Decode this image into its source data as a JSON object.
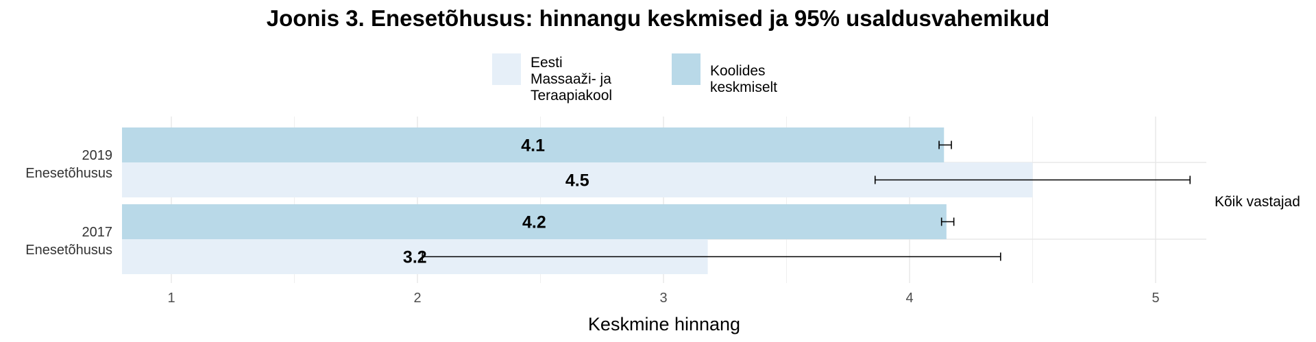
{
  "chart_data": {
    "type": "bar",
    "orientation": "horizontal",
    "title": "Joonis 3. Enesetõhusus: hinnangu keskmised ja 95% usaldusvahemikud",
    "xlabel": "Keskmine hinnang",
    "ylabel": "",
    "xlim": [
      0.8,
      5.2
    ],
    "xticks": [
      "1",
      "2",
      "3",
      "4",
      "5"
    ],
    "categories": [
      "2019\nEnesetõhusus",
      "2017\nEnesetõhusus"
    ],
    "category_lines": [
      [
        "2019",
        "Enesetõhusus"
      ],
      [
        "2017",
        "Enesetõhusus"
      ]
    ],
    "facet_label": "Kõik vastajad",
    "legend_position": "top",
    "grid": true,
    "series": [
      {
        "name": "Koolides keskmiselt",
        "color": "#b9d9e8",
        "values": [
          4.14,
          4.15
        ],
        "labels": [
          "4.1",
          "4.2"
        ],
        "ci_low": [
          4.12,
          4.13
        ],
        "ci_high": [
          4.17,
          4.18
        ]
      },
      {
        "name": "Eesti Massaaži- ja Teraapiakool",
        "color": "#e6eff8",
        "values": [
          4.5,
          3.18
        ],
        "labels": [
          "4.5",
          "3.2"
        ],
        "ci_low": [
          3.86,
          2.02
        ],
        "ci_high": [
          5.14,
          4.37
        ]
      }
    ],
    "legend": [
      {
        "lines": [
          "Eesti Massaaži- ja",
          "Teraapiakool"
        ],
        "color": "#e6eff8"
      },
      {
        "lines": [
          "Koolides keskmiselt"
        ],
        "color": "#b9d9e8"
      }
    ]
  }
}
